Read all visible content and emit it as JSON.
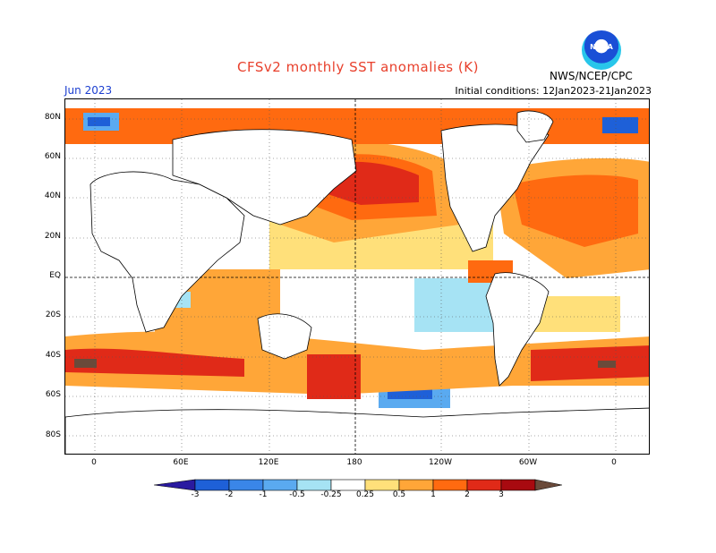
{
  "header": {
    "title": "CFSv2 monthly SST anomalies (K)",
    "target_month": "Jun 2023",
    "initial_conditions": "Initial conditions: 12Jan2023-21Jan2023",
    "organization": "NWS/NCEP/CPC",
    "logo_text": "NOAA"
  },
  "map": {
    "lat_labels": [
      "80N",
      "60N",
      "40N",
      "20N",
      "EQ",
      "20S",
      "40S",
      "60S",
      "80S"
    ],
    "lon_labels": [
      "0",
      "60E",
      "120E",
      "180",
      "120W",
      "60W",
      "0"
    ]
  },
  "colorbar": {
    "labels": [
      "-3",
      "-2",
      "-1",
      "-0.5",
      "-0.25",
      "0.25",
      "0.5",
      "1",
      "2",
      "3"
    ],
    "colors": [
      "#2a1aa0",
      "#1e60d8",
      "#3a86e8",
      "#5aaaf0",
      "#a6e3f4",
      "#ffffff",
      "#ffe07a",
      "#ffa638",
      "#ff6a10",
      "#e02a18",
      "#a80a10",
      "#6a4a3a"
    ]
  },
  "anomaly_colors": {
    "weak_warm": "#ffe07a",
    "warm": "#ffa638",
    "strong_warm": "#ff6a10",
    "hot": "#e02a18",
    "very_hot": "#a80a10",
    "extreme": "#6a4a3a",
    "weak_cool": "#a6e3f4",
    "cool": "#5aaaf0",
    "strong_cool": "#1e60d8"
  }
}
